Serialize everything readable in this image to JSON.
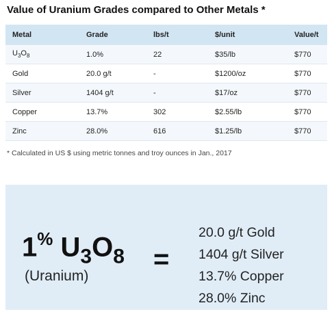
{
  "title": "Value of Uranium Grades compared to Other Metals *",
  "table": {
    "headers": [
      "Metal",
      "Grade",
      "lbs/t",
      "$/unit",
      "Value/t"
    ],
    "rows": [
      {
        "metal_base": "U",
        "metal_sub1": "3",
        "metal_mid": "O",
        "metal_sub2": "8",
        "grade": "1.0%",
        "lbst": "22",
        "unit": "$35/lb",
        "value": "$770"
      },
      {
        "metal": "Gold",
        "grade": "20.0 g/t",
        "lbst": "-",
        "unit": "$1200/oz",
        "value": "$770"
      },
      {
        "metal": "Silver",
        "grade": "1404 g/t",
        "lbst": "-",
        "unit": "$17/oz",
        "value": "$770"
      },
      {
        "metal": "Copper",
        "grade": "13.7%",
        "lbst": "302",
        "unit": "$2.55/lb",
        "value": "$770"
      },
      {
        "metal": "Zinc",
        "grade": "28.0%",
        "lbst": "616",
        "unit": "$1.25/lb",
        "value": "$770"
      }
    ]
  },
  "footnote": "* Calculated in US $ using metric tonnes and troy ounces in Jan., 2017",
  "panel": {
    "big_percent": "1",
    "big_sup": "%",
    "big_u": "U",
    "big_sub1": "3",
    "big_o": "O",
    "big_sub2": "8",
    "uranium_label": "(Uranium)",
    "equals": "=",
    "equivalents": [
      "20.0 g/t Gold",
      "1404 g/t Silver",
      "13.7% Copper",
      "28.0% Zinc"
    ]
  }
}
